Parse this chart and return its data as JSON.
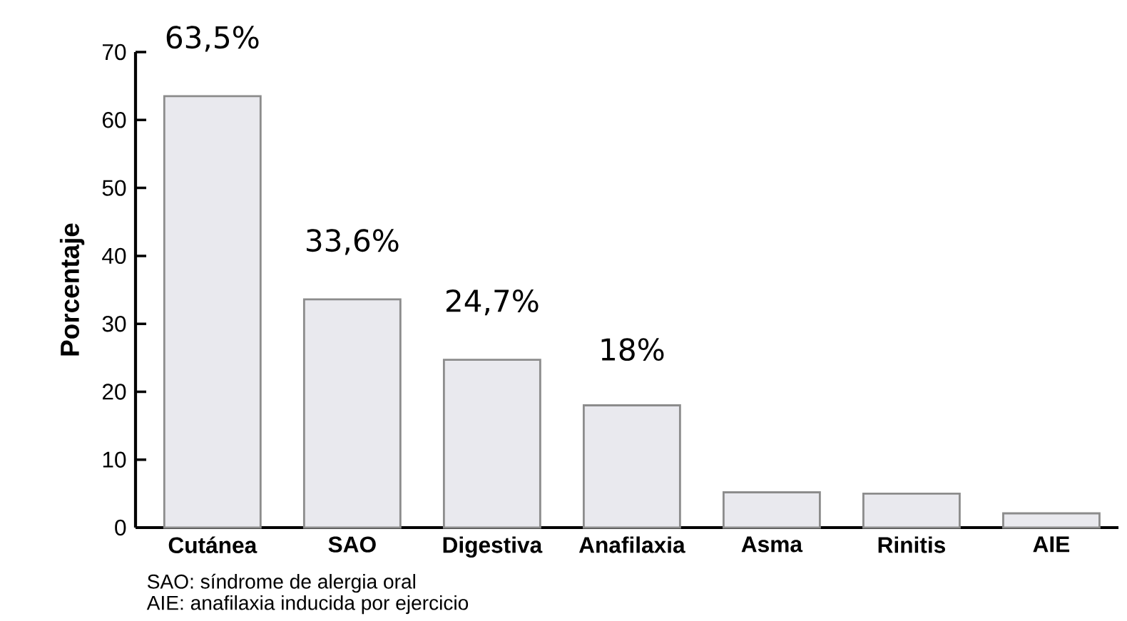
{
  "chart_data": {
    "type": "bar",
    "ylabel": "Porcentaje",
    "categories": [
      "Cutánea",
      "SAO",
      "Digestiva",
      "Anafilaxia",
      "Asma",
      "Rinitis",
      "AIE"
    ],
    "values": [
      63.5,
      33.6,
      24.7,
      18,
      5.2,
      5,
      2.1
    ],
    "value_labels": [
      "63,5%",
      "33,6%",
      "24,7%",
      "18%",
      null,
      null,
      null
    ],
    "color": "#e9e9ee",
    "ylim": [
      0,
      70
    ],
    "yticks": [
      0,
      10,
      20,
      30,
      40,
      50,
      60,
      70
    ],
    "annotations": [
      "SAO: síndrome de alergia oral",
      "AIE: anafilaxia inducida por ejercicio"
    ]
  }
}
